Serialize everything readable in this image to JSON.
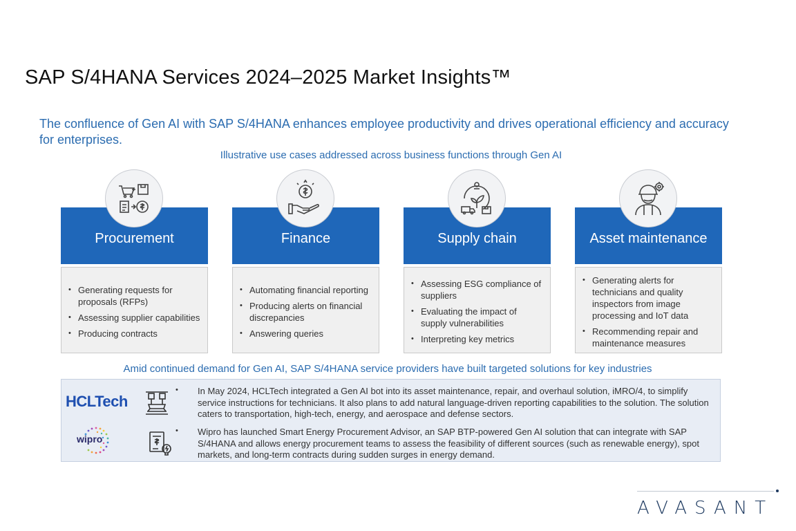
{
  "title": "SAP S/4HANA Services 2024–2025 Market Insights™",
  "headline": "The confluence of Gen AI with SAP S/4HANA enhances employee productivity and drives operational efficiency and accuracy for enterprises.",
  "subhead_top": "Illustrative use cases addressed across business functions through Gen AI",
  "functions": [
    {
      "icon": "procurement-icon",
      "label": "Procurement",
      "items": [
        "Generating requests for proposals (RFPs)",
        "Assessing supplier capabilities",
        "Producing contracts"
      ]
    },
    {
      "icon": "finance-icon",
      "label": "Finance",
      "items": [
        "Automating financial reporting",
        "Producing alerts on financial discrepancies",
        "Answering queries"
      ]
    },
    {
      "icon": "supply-chain-icon",
      "label": "Supply chain",
      "items": [
        "Assessing ESG compliance of suppliers",
        "Evaluating the impact of supply vulnerabilities",
        "Interpreting key metrics"
      ]
    },
    {
      "icon": "technician-icon",
      "label": "Asset maintenance",
      "items": [
        "Generating alerts for technicians and quality inspectors from image processing and IoT data",
        "Recommending repair and maintenance measures"
      ]
    }
  ],
  "subhead_bottom": "Amid continued demand for Gen AI, SAP S/4HANA service providers have built targeted solutions for key industries",
  "providers": [
    {
      "logo_text": "HCLTech",
      "industry_icon": "industrial-machine-icon",
      "text": "In May 2024, HCLTech integrated a Gen AI bot into its asset maintenance, repair, and overhaul solution, iMRO/4, to simplify service instructions for technicians. It also plans to add natural language-driven reporting capabilities to the solution. The solution caters to transportation, high-tech, energy, and aerospace and defense sectors."
    },
    {
      "logo_text": "wipro",
      "industry_icon": "energy-bill-icon",
      "text": "Wipro has launched Smart Energy Procurement Advisor, an SAP BTP-powered Gen AI solution that can integrate with SAP S/4HANA and allows energy procurement teams to assess the feasibility of different sources (such as renewable energy), spot markets, and long-term contracts during sudden surges in energy demand."
    }
  ],
  "brand": "AVASANT",
  "colors": {
    "accent_blue": "#1f67b9",
    "text_blue": "#2b6cb0",
    "panel_bg": "#e8edf5",
    "grey_box": "#f0f0f0"
  }
}
